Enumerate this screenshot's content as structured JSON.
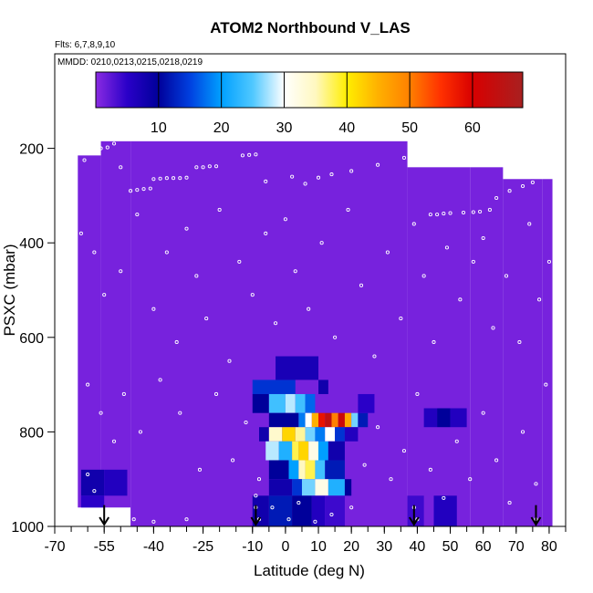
{
  "chart_data": {
    "type": "heatmap",
    "title": "ATOM2 Northbound V_LAS",
    "flights_label": "Flts: 6,7,8,9,10",
    "dates_label": "MMDD: 0210,0213,0215,0218,0219",
    "xlabel": "Latitude (deg N)",
    "ylabel": "PSXC (mbar)",
    "xlim": [
      -70,
      85
    ],
    "ylim": [
      1000,
      0
    ],
    "x_ticks": [
      "-70",
      "-55",
      "-40",
      "-25",
      "-10",
      "0",
      "10",
      "20",
      "30",
      "40",
      "50",
      "60",
      "70",
      "80"
    ],
    "x_tick_values": [
      -70,
      -55,
      -40,
      -25,
      -10,
      0,
      10,
      20,
      30,
      40,
      50,
      60,
      70,
      80
    ],
    "y_ticks": [
      "200",
      "400",
      "600",
      "800",
      "1000"
    ],
    "y_tick_values": [
      200,
      400,
      600,
      800,
      1000
    ],
    "colorbar": {
      "range": [
        0,
        68
      ],
      "tick_labels": [
        "10",
        "20",
        "30",
        "40",
        "50",
        "60"
      ],
      "tick_values": [
        10,
        20,
        30,
        40,
        50,
        60
      ],
      "stops": [
        {
          "v": 0,
          "c": "#8a2be2"
        },
        {
          "v": 5,
          "c": "#2a00c8"
        },
        {
          "v": 10,
          "c": "#00009a"
        },
        {
          "v": 15,
          "c": "#0040e0"
        },
        {
          "v": 20,
          "c": "#00a0ff"
        },
        {
          "v": 25,
          "c": "#50c8ff"
        },
        {
          "v": 30,
          "c": "#ffffff"
        },
        {
          "v": 35,
          "c": "#fff8c0"
        },
        {
          "v": 40,
          "c": "#ffee00"
        },
        {
          "v": 45,
          "c": "#ffb000"
        },
        {
          "v": 50,
          "c": "#ff8000"
        },
        {
          "v": 55,
          "c": "#ff3000"
        },
        {
          "v": 60,
          "c": "#d80000"
        },
        {
          "v": 68,
          "c": "#a82020"
        }
      ]
    },
    "background_value": 1,
    "coverage": [
      {
        "lat": [
          -63,
          -56
        ],
        "p": [
          215,
          960
        ]
      },
      {
        "lat": [
          -56,
          -47
        ],
        "p": [
          185,
          960
        ]
      },
      {
        "lat": [
          -47,
          37
        ],
        "p": [
          185,
          1000
        ]
      },
      {
        "lat": [
          37,
          56
        ],
        "p": [
          240,
          1000
        ]
      },
      {
        "lat": [
          56,
          66
        ],
        "p": [
          240,
          1000
        ]
      },
      {
        "lat": [
          66,
          78
        ],
        "p": [
          265,
          1000
        ]
      },
      {
        "lat": [
          78,
          81
        ],
        "p": [
          265,
          1000
        ]
      }
    ],
    "cells": [
      {
        "lat": [
          -10,
          3
        ],
        "p": [
          690,
          720
        ],
        "v": 14
      },
      {
        "lat": [
          -10,
          -5
        ],
        "p": [
          720,
          760
        ],
        "v": 10
      },
      {
        "lat": [
          -5,
          0
        ],
        "p": [
          720,
          760
        ],
        "v": 24
      },
      {
        "lat": [
          0,
          3
        ],
        "p": [
          720,
          760
        ],
        "v": 28
      },
      {
        "lat": [
          3,
          6
        ],
        "p": [
          720,
          760
        ],
        "v": 24
      },
      {
        "lat": [
          6,
          9
        ],
        "p": [
          720,
          760
        ],
        "v": 17
      },
      {
        "lat": [
          -5,
          4
        ],
        "p": [
          760,
          790
        ],
        "v": 10
      },
      {
        "lat": [
          4,
          6
        ],
        "p": [
          760,
          790
        ],
        "v": 18
      },
      {
        "lat": [
          6,
          8
        ],
        "p": [
          760,
          790
        ],
        "v": 30
      },
      {
        "lat": [
          8,
          10
        ],
        "p": [
          760,
          790
        ],
        "v": 45
      },
      {
        "lat": [
          10,
          12
        ],
        "p": [
          760,
          790
        ],
        "v": 58
      },
      {
        "lat": [
          12,
          14
        ],
        "p": [
          760,
          790
        ],
        "v": 64
      },
      {
        "lat": [
          14,
          16
        ],
        "p": [
          760,
          790
        ],
        "v": 50
      },
      {
        "lat": [
          16,
          18
        ],
        "p": [
          760,
          790
        ],
        "v": 62
      },
      {
        "lat": [
          18,
          20
        ],
        "p": [
          760,
          790
        ],
        "v": 46
      },
      {
        "lat": [
          20,
          22
        ],
        "p": [
          760,
          790
        ],
        "v": 26
      },
      {
        "lat": [
          22,
          25
        ],
        "p": [
          760,
          790
        ],
        "v": 12
      },
      {
        "lat": [
          -8,
          -5
        ],
        "p": [
          790,
          820
        ],
        "v": 8
      },
      {
        "lat": [
          -5,
          -1
        ],
        "p": [
          790,
          820
        ],
        "v": 34
      },
      {
        "lat": [
          -1,
          3
        ],
        "p": [
          790,
          820
        ],
        "v": 42
      },
      {
        "lat": [
          3,
          6
        ],
        "p": [
          790,
          820
        ],
        "v": 36
      },
      {
        "lat": [
          6,
          9
        ],
        "p": [
          790,
          820
        ],
        "v": 26
      },
      {
        "lat": [
          9,
          12
        ],
        "p": [
          790,
          820
        ],
        "v": 18
      },
      {
        "lat": [
          12,
          15
        ],
        "p": [
          790,
          820
        ],
        "v": 30
      },
      {
        "lat": [
          15,
          18
        ],
        "p": [
          790,
          820
        ],
        "v": 14
      },
      {
        "lat": [
          18,
          22
        ],
        "p": [
          790,
          820
        ],
        "v": 6
      },
      {
        "lat": [
          -6,
          -2
        ],
        "p": [
          820,
          860
        ],
        "v": 28
      },
      {
        "lat": [
          -2,
          2
        ],
        "p": [
          820,
          860
        ],
        "v": 22
      },
      {
        "lat": [
          2,
          4
        ],
        "p": [
          820,
          860
        ],
        "v": 38
      },
      {
        "lat": [
          4,
          7
        ],
        "p": [
          820,
          860
        ],
        "v": 42
      },
      {
        "lat": [
          7,
          10
        ],
        "p": [
          820,
          860
        ],
        "v": 32
      },
      {
        "lat": [
          10,
          13
        ],
        "p": [
          820,
          860
        ],
        "v": 20
      },
      {
        "lat": [
          13,
          18
        ],
        "p": [
          820,
          860
        ],
        "v": 8
      },
      {
        "lat": [
          -5,
          1
        ],
        "p": [
          860,
          900
        ],
        "v": 10
      },
      {
        "lat": [
          1,
          4
        ],
        "p": [
          860,
          900
        ],
        "v": 20
      },
      {
        "lat": [
          4,
          6
        ],
        "p": [
          860,
          900
        ],
        "v": 35
      },
      {
        "lat": [
          6,
          9
        ],
        "p": [
          860,
          900
        ],
        "v": 38
      },
      {
        "lat": [
          9,
          12
        ],
        "p": [
          860,
          900
        ],
        "v": 24
      },
      {
        "lat": [
          12,
          18
        ],
        "p": [
          860,
          900
        ],
        "v": 12
      },
      {
        "lat": [
          -5,
          2
        ],
        "p": [
          900,
          935
        ],
        "v": 8
      },
      {
        "lat": [
          2,
          5
        ],
        "p": [
          900,
          935
        ],
        "v": 14
      },
      {
        "lat": [
          5,
          9
        ],
        "p": [
          900,
          935
        ],
        "v": 26
      },
      {
        "lat": [
          9,
          13
        ],
        "p": [
          900,
          935
        ],
        "v": 32
      },
      {
        "lat": [
          13,
          18
        ],
        "p": [
          900,
          935
        ],
        "v": 22
      },
      {
        "lat": [
          18,
          20
        ],
        "p": [
          900,
          935
        ],
        "v": 10
      },
      {
        "lat": [
          -10,
          -5
        ],
        "p": [
          935,
          1000
        ],
        "v": 8
      },
      {
        "lat": [
          -5,
          2
        ],
        "p": [
          935,
          1000
        ],
        "v": 12
      },
      {
        "lat": [
          2,
          8
        ],
        "p": [
          935,
          1000
        ],
        "v": 10
      },
      {
        "lat": [
          8,
          12
        ],
        "p": [
          935,
          1000
        ],
        "v": 6
      },
      {
        "lat": [
          12,
          18
        ],
        "p": [
          935,
          1000
        ],
        "v": 4
      },
      {
        "lat": [
          -62,
          -55
        ],
        "p": [
          880,
          935
        ],
        "v": 8
      },
      {
        "lat": [
          -55,
          -48
        ],
        "p": [
          880,
          935
        ],
        "v": 6
      },
      {
        "lat": [
          -62,
          -55
        ],
        "p": [
          935,
          960
        ],
        "v": 5
      },
      {
        "lat": [
          42,
          46
        ],
        "p": [
          750,
          790
        ],
        "v": 6
      },
      {
        "lat": [
          46,
          50
        ],
        "p": [
          750,
          790
        ],
        "v": 10
      },
      {
        "lat": [
          50,
          55
        ],
        "p": [
          750,
          790
        ],
        "v": 6
      },
      {
        "lat": [
          45,
          52
        ],
        "p": [
          935,
          1000
        ],
        "v": 6
      },
      {
        "lat": [
          37,
          42
        ],
        "p": [
          935,
          1000
        ],
        "v": 4
      },
      {
        "lat": [
          -3,
          10
        ],
        "p": [
          640,
          690
        ],
        "v": 7
      },
      {
        "lat": [
          10,
          13
        ],
        "p": [
          690,
          720
        ],
        "v": 8
      },
      {
        "lat": [
          22,
          27
        ],
        "p": [
          720,
          760
        ],
        "v": 5
      }
    ],
    "profile_arrows_lat": [
      -55,
      -9,
      39,
      76
    ],
    "point_markers": [
      {
        "lat": -61,
        "p": 225
      },
      {
        "lat": -58,
        "p": 210
      },
      {
        "lat": -56,
        "p": 200
      },
      {
        "lat": -54,
        "p": 198
      },
      {
        "lat": -52,
        "p": 190
      },
      {
        "lat": -50,
        "p": 240
      },
      {
        "lat": -47,
        "p": 290
      },
      {
        "lat": -45,
        "p": 288
      },
      {
        "lat": -43,
        "p": 286
      },
      {
        "lat": -41,
        "p": 285
      },
      {
        "lat": -40,
        "p": 265
      },
      {
        "lat": -38,
        "p": 264
      },
      {
        "lat": -36,
        "p": 263
      },
      {
        "lat": -34,
        "p": 263
      },
      {
        "lat": -32,
        "p": 263
      },
      {
        "lat": -30,
        "p": 262
      },
      {
        "lat": -27,
        "p": 240
      },
      {
        "lat": -25,
        "p": 240
      },
      {
        "lat": -23,
        "p": 238
      },
      {
        "lat": -21,
        "p": 238
      },
      {
        "lat": -13,
        "p": 215
      },
      {
        "lat": -11,
        "p": 214
      },
      {
        "lat": -9,
        "p": 213
      },
      {
        "lat": -6,
        "p": 270
      },
      {
        "lat": 2,
        "p": 260
      },
      {
        "lat": 6,
        "p": 275
      },
      {
        "lat": 10,
        "p": 262
      },
      {
        "lat": 14,
        "p": 255
      },
      {
        "lat": 20,
        "p": 248
      },
      {
        "lat": 28,
        "p": 235
      },
      {
        "lat": 36,
        "p": 220
      },
      {
        "lat": 44,
        "p": 340
      },
      {
        "lat": 46,
        "p": 340
      },
      {
        "lat": 48,
        "p": 338
      },
      {
        "lat": 50,
        "p": 337
      },
      {
        "lat": 54,
        "p": 336
      },
      {
        "lat": 57,
        "p": 335
      },
      {
        "lat": 59,
        "p": 334
      },
      {
        "lat": 62,
        "p": 330
      },
      {
        "lat": 64,
        "p": 305
      },
      {
        "lat": 68,
        "p": 290
      },
      {
        "lat": 72,
        "p": 280
      },
      {
        "lat": 75,
        "p": 272
      },
      {
        "lat": -62,
        "p": 380
      },
      {
        "lat": -58,
        "p": 420
      },
      {
        "lat": -55,
        "p": 510
      },
      {
        "lat": -50,
        "p": 460
      },
      {
        "lat": -45,
        "p": 340
      },
      {
        "lat": -40,
        "p": 540
      },
      {
        "lat": -36,
        "p": 420
      },
      {
        "lat": -33,
        "p": 610
      },
      {
        "lat": -30,
        "p": 370
      },
      {
        "lat": -27,
        "p": 470
      },
      {
        "lat": -24,
        "p": 560
      },
      {
        "lat": -20,
        "p": 330
      },
      {
        "lat": -17,
        "p": 650
      },
      {
        "lat": -14,
        "p": 440
      },
      {
        "lat": -10,
        "p": 510
      },
      {
        "lat": -6,
        "p": 380
      },
      {
        "lat": -3,
        "p": 570
      },
      {
        "lat": 0,
        "p": 350
      },
      {
        "lat": 3,
        "p": 460
      },
      {
        "lat": 7,
        "p": 540
      },
      {
        "lat": 11,
        "p": 400
      },
      {
        "lat": 15,
        "p": 600
      },
      {
        "lat": 19,
        "p": 330
      },
      {
        "lat": 23,
        "p": 490
      },
      {
        "lat": 27,
        "p": 640
      },
      {
        "lat": 31,
        "p": 420
      },
      {
        "lat": 35,
        "p": 560
      },
      {
        "lat": 39,
        "p": 360
      },
      {
        "lat": 42,
        "p": 470
      },
      {
        "lat": 45,
        "p": 610
      },
      {
        "lat": 49,
        "p": 410
      },
      {
        "lat": 53,
        "p": 520
      },
      {
        "lat": 57,
        "p": 440
      },
      {
        "lat": 60,
        "p": 390
      },
      {
        "lat": 63,
        "p": 580
      },
      {
        "lat": 67,
        "p": 470
      },
      {
        "lat": 71,
        "p": 610
      },
      {
        "lat": 74,
        "p": 360
      },
      {
        "lat": 77,
        "p": 520
      },
      {
        "lat": 80,
        "p": 440
      },
      {
        "lat": -60,
        "p": 700
      },
      {
        "lat": -56,
        "p": 760
      },
      {
        "lat": -52,
        "p": 820
      },
      {
        "lat": -49,
        "p": 720
      },
      {
        "lat": -44,
        "p": 800
      },
      {
        "lat": -38,
        "p": 690
      },
      {
        "lat": -32,
        "p": 760
      },
      {
        "lat": -26,
        "p": 880
      },
      {
        "lat": -21,
        "p": 720
      },
      {
        "lat": -16,
        "p": 860
      },
      {
        "lat": -12,
        "p": 780
      },
      {
        "lat": -8,
        "p": 900
      },
      {
        "lat": -4,
        "p": 960
      },
      {
        "lat": 1,
        "p": 985
      },
      {
        "lat": 4,
        "p": 950
      },
      {
        "lat": 9,
        "p": 990
      },
      {
        "lat": 14,
        "p": 975
      },
      {
        "lat": 20,
        "p": 960
      },
      {
        "lat": 24,
        "p": 870
      },
      {
        "lat": 28,
        "p": 790
      },
      {
        "lat": 32,
        "p": 900
      },
      {
        "lat": 36,
        "p": 840
      },
      {
        "lat": 40,
        "p": 720
      },
      {
        "lat": 44,
        "p": 880
      },
      {
        "lat": 48,
        "p": 940
      },
      {
        "lat": 52,
        "p": 820
      },
      {
        "lat": 56,
        "p": 900
      },
      {
        "lat": 60,
        "p": 760
      },
      {
        "lat": 64,
        "p": 860
      },
      {
        "lat": 68,
        "p": 950
      },
      {
        "lat": 72,
        "p": 800
      },
      {
        "lat": 76,
        "p": 910
      },
      {
        "lat": 79,
        "p": 700
      },
      {
        "lat": -58,
        "p": 925
      },
      {
        "lat": -60,
        "p": 890
      },
      {
        "lat": -9,
        "p": 935
      },
      {
        "lat": -9,
        "p": 960
      },
      {
        "lat": -8,
        "p": 985
      },
      {
        "lat": 39,
        "p": 960
      },
      {
        "lat": 40,
        "p": 985
      },
      {
        "lat": 76,
        "p": 985
      },
      {
        "lat": -46,
        "p": 985
      },
      {
        "lat": -40,
        "p": 990
      },
      {
        "lat": -30,
        "p": 985
      }
    ]
  }
}
